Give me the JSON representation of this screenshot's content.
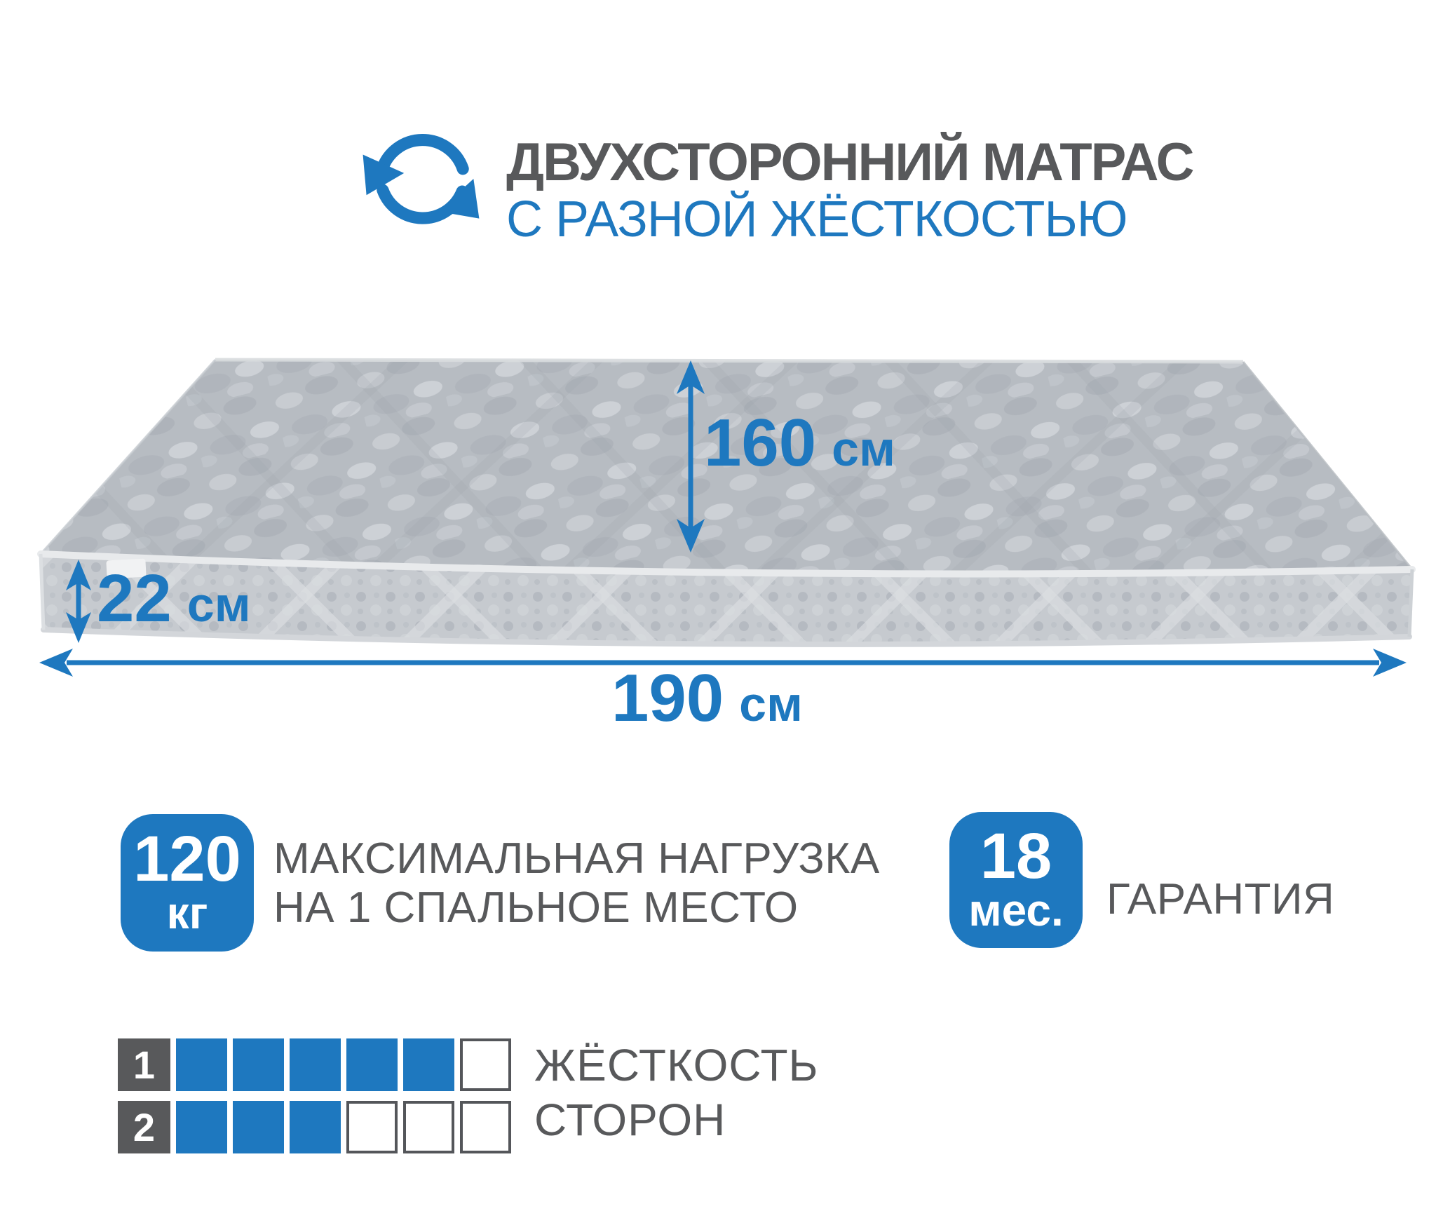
{
  "colors": {
    "accent": "#1e78bf",
    "text_gray": "#58595b",
    "mattress_top": "#b7bcc2",
    "mattress_band": "#c6cacf"
  },
  "header": {
    "icon": "rotate-arrows-icon",
    "title_line1": "ДВУХСТОРОННИЙ МАТРАС",
    "title_line2": "С РАЗНОЙ ЖЁСТКОСТЬЮ"
  },
  "dimensions": {
    "width": {
      "value": "160",
      "unit": "см"
    },
    "height": {
      "value": "22",
      "unit": "см"
    },
    "length": {
      "value": "190",
      "unit": "см"
    }
  },
  "load_badge": {
    "value": "120",
    "unit": "кг",
    "caption_line1": "МАКСИМАЛЬНАЯ НАГРУЗКА",
    "caption_line2": "НА 1 СПАЛЬНОЕ МЕСТО"
  },
  "warranty_badge": {
    "value": "18",
    "unit": "мес.",
    "caption": "ГАРАНТИЯ"
  },
  "hardness": {
    "caption_line1": "ЖЁСТКОСТЬ",
    "caption_line2": "СТОРОН",
    "scale_max": 6,
    "rows": [
      {
        "label": "1",
        "filled": 5
      },
      {
        "label": "2",
        "filled": 3
      }
    ]
  }
}
